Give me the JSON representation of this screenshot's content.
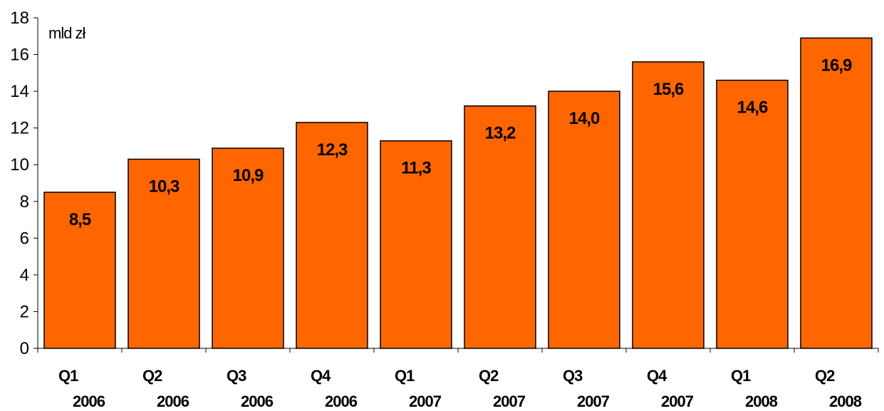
{
  "chart_data": {
    "type": "bar",
    "title": "",
    "unit_label": "mld zł",
    "xlabel": "",
    "ylabel": "",
    "ylim": [
      0,
      18
    ],
    "yticks": [
      0,
      2,
      4,
      6,
      8,
      10,
      12,
      14,
      16,
      18
    ],
    "grid": false,
    "legend": "none",
    "bar_color": "#FF6600",
    "bar_edge_color": "#000000",
    "categories": [
      {
        "quarter": "Q1",
        "year": "2006"
      },
      {
        "quarter": "Q2",
        "year": "2006"
      },
      {
        "quarter": "Q3",
        "year": "2006"
      },
      {
        "quarter": "Q4",
        "year": "2006"
      },
      {
        "quarter": "Q1",
        "year": "2007"
      },
      {
        "quarter": "Q2",
        "year": "2007"
      },
      {
        "quarter": "Q3",
        "year": "2007"
      },
      {
        "quarter": "Q4",
        "year": "2007"
      },
      {
        "quarter": "Q1",
        "year": "2008"
      },
      {
        "quarter": "Q2",
        "year": "2008"
      }
    ],
    "values": [
      8.5,
      10.3,
      10.9,
      12.3,
      11.3,
      13.2,
      14.0,
      15.6,
      14.6,
      16.9
    ],
    "value_labels": [
      "8,5",
      "10,3",
      "10,9",
      "12,3",
      "11,3",
      "13,2",
      "14,0",
      "15,6",
      "14,6",
      "16,9"
    ]
  }
}
